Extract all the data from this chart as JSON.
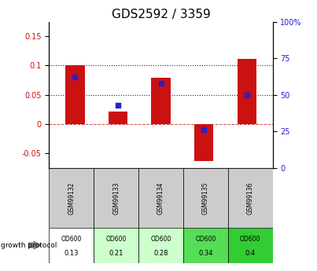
{
  "title": "GDS2592 / 3359",
  "samples": [
    "GSM99132",
    "GSM99133",
    "GSM99134",
    "GSM99135",
    "GSM99136"
  ],
  "log2_ratio": [
    0.101,
    0.022,
    0.079,
    -0.063,
    0.111
  ],
  "percentile_rank_pct": [
    62,
    43,
    58,
    26,
    50
  ],
  "od600_values": [
    "0.13",
    "0.21",
    "0.28",
    "0.34",
    "0.4"
  ],
  "od600_bg_colors": [
    "#ffffff",
    "#ccffcc",
    "#ccffcc",
    "#55dd55",
    "#33cc33"
  ],
  "ylim_left": [
    -0.075,
    0.175
  ],
  "ylim_right": [
    0,
    100
  ],
  "yticks_left": [
    -0.05,
    0.0,
    0.05,
    0.1,
    0.15
  ],
  "yticks_right": [
    0,
    25,
    50,
    75,
    100
  ],
  "bar_color": "#cc1111",
  "dot_color": "#2222cc",
  "zero_line_color": "#cc4444",
  "dotted_line_color": "#222222",
  "bg_table_sample": "#cccccc",
  "bar_width": 0.45,
  "title_fontsize": 11,
  "tick_fontsize": 7,
  "legend_fontsize": 7.5
}
